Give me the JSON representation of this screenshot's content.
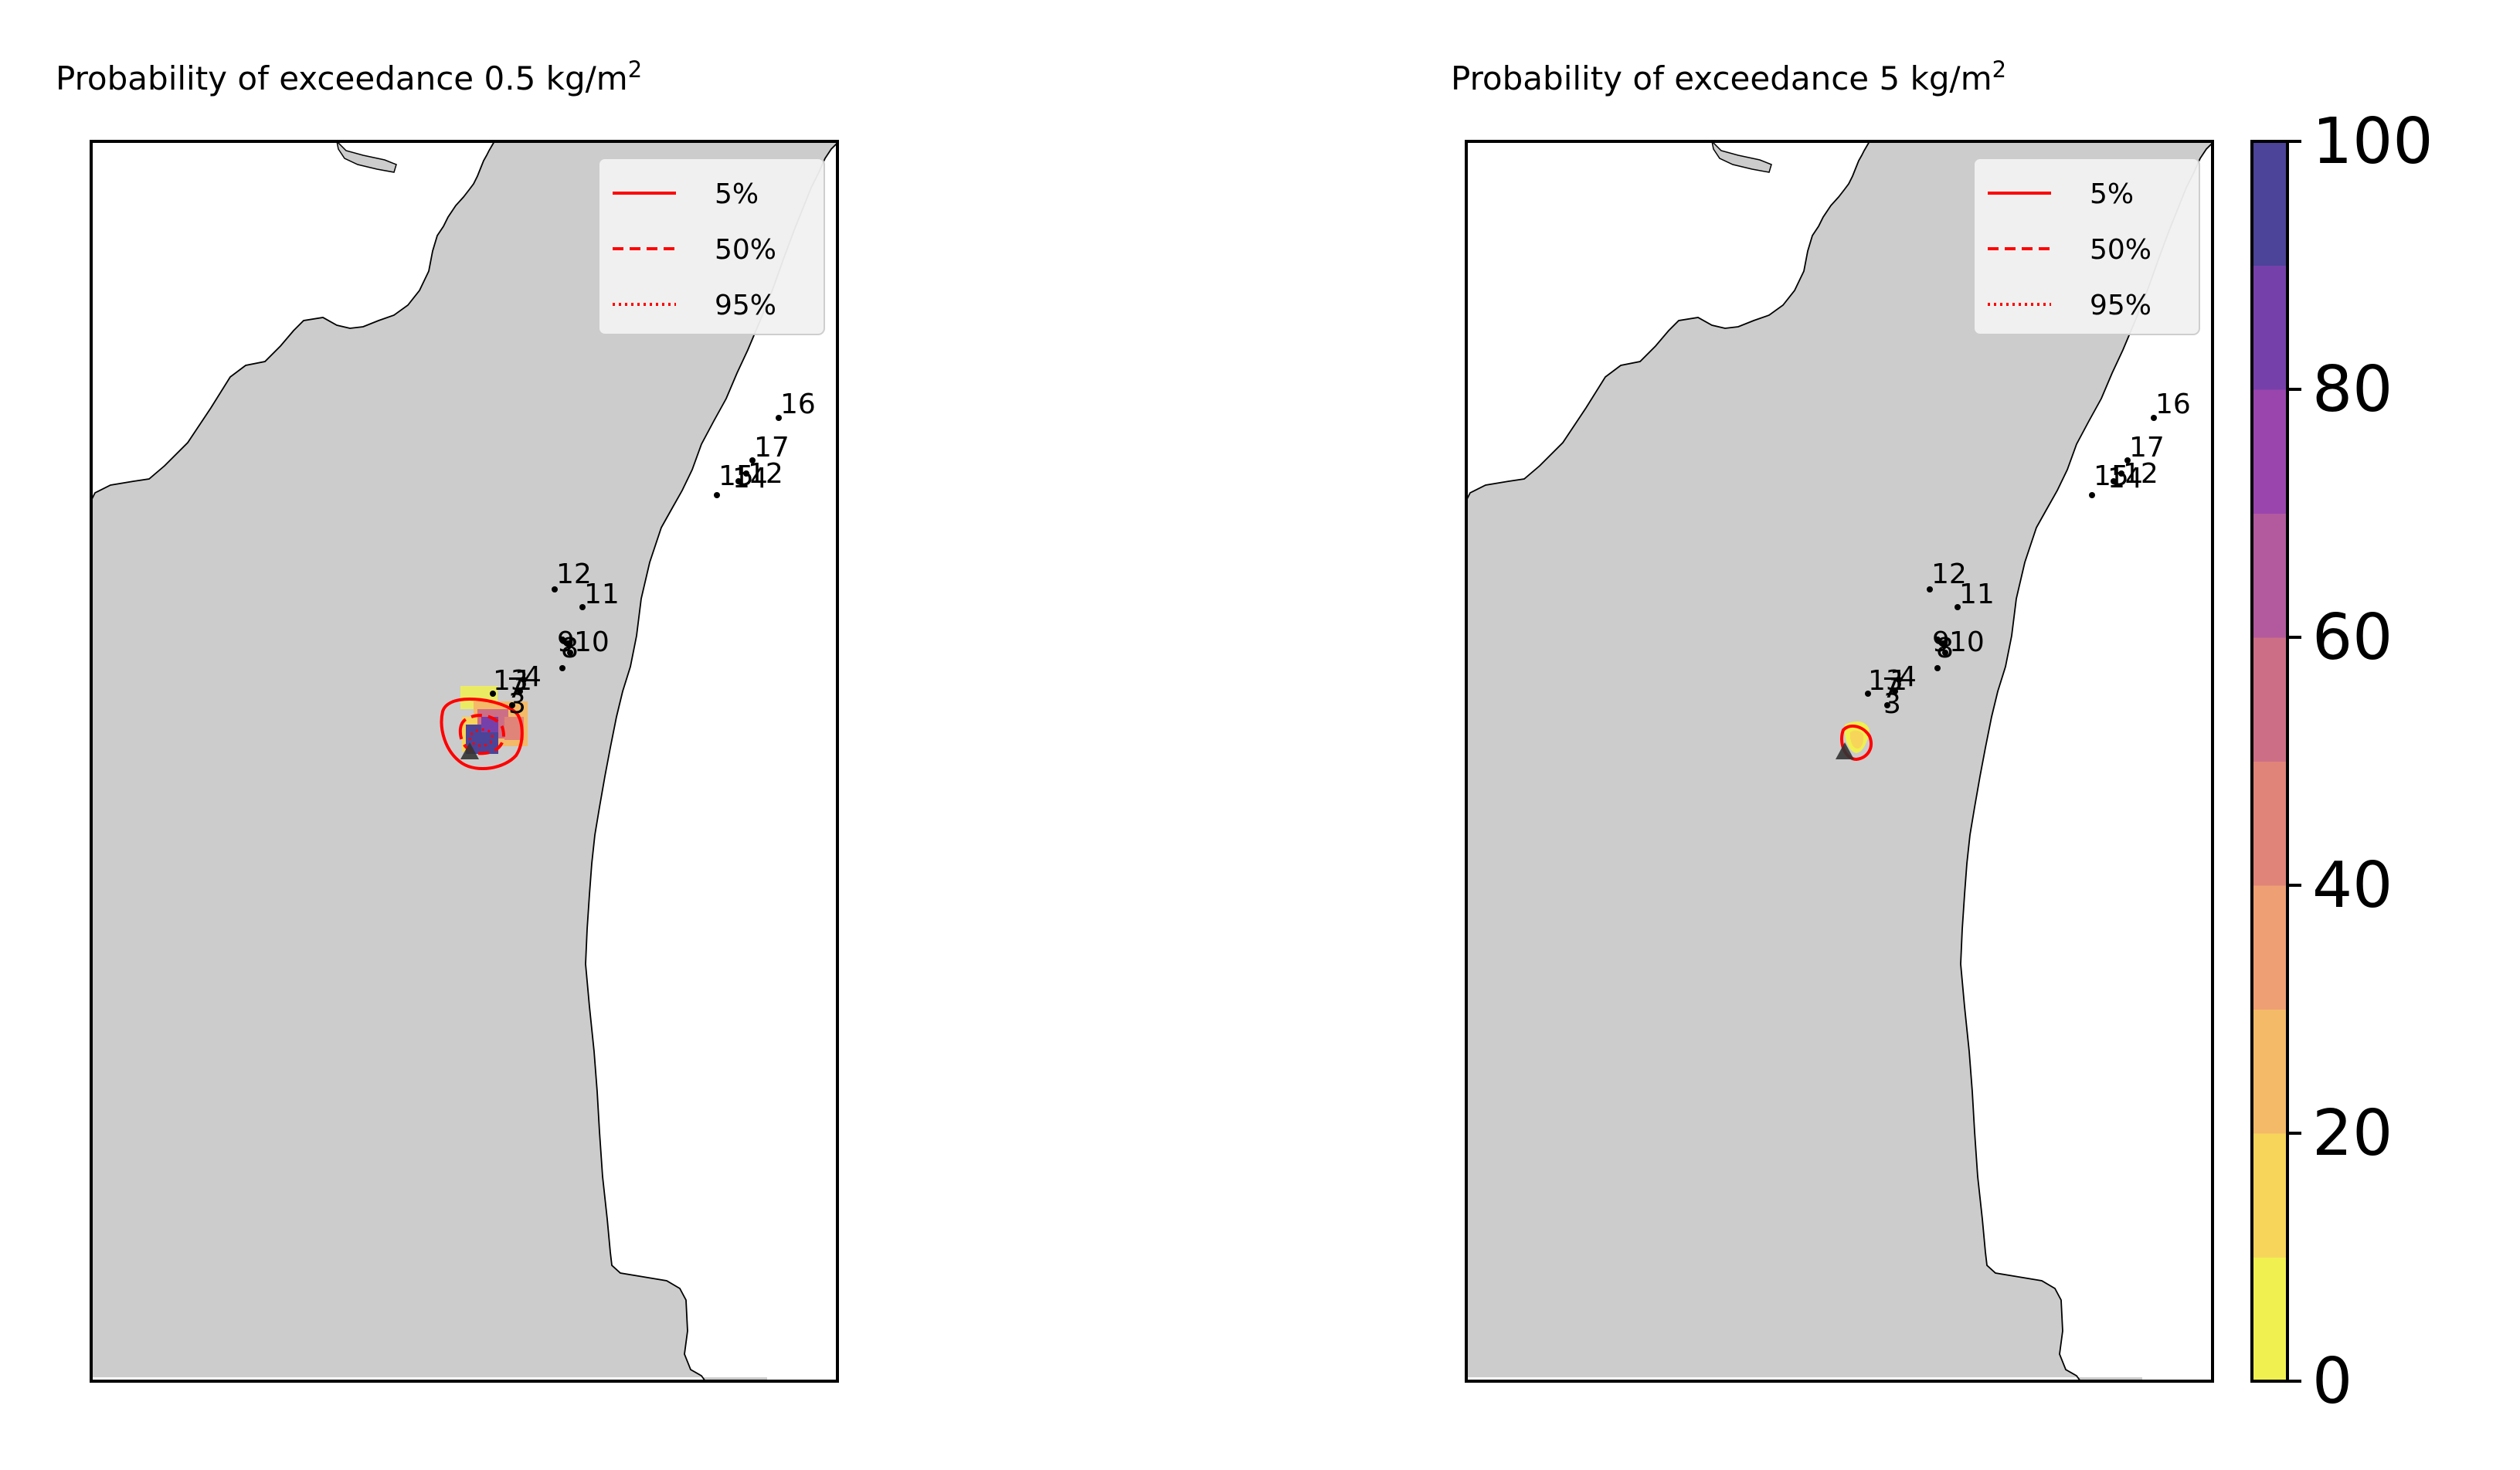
{
  "figure": {
    "panels": [
      {
        "title_prefix": "Probability of exceedance 0.5 kg/m",
        "title_exp": "2",
        "legend": [
          {
            "label": "5%",
            "style": "solid"
          },
          {
            "label": "50%",
            "style": "dashed"
          },
          {
            "label": "95%",
            "style": "dotted"
          }
        ],
        "hotspot": {
          "shape": "large",
          "max_probability": 100
        }
      },
      {
        "title_prefix": "Probability of exceedance 5 kg/m",
        "title_exp": "2",
        "legend": [
          {
            "label": "5%",
            "style": "solid"
          },
          {
            "label": "50%",
            "style": "dashed"
          },
          {
            "label": "95%",
            "style": "dotted"
          }
        ],
        "hotspot": {
          "shape": "small",
          "max_probability": 20
        }
      }
    ],
    "site_labels": [
      "16",
      "17",
      "12",
      "15",
      "14",
      "12",
      "11",
      "9",
      "8",
      "10",
      "4",
      "1",
      "7",
      "3",
      "13"
    ],
    "colorbar": {
      "ticks": [
        "0",
        "20",
        "40",
        "60",
        "80",
        "100"
      ],
      "range": [
        0,
        100
      ],
      "colors": [
        "#f0f050",
        "#f7d55a",
        "#f4ba68",
        "#ee9f74",
        "#e08479",
        "#cc6f86",
        "#b35a9e",
        "#9a45ae",
        "#7640aa",
        "#4b4498"
      ]
    },
    "colors": {
      "land": "#cccccc",
      "sea": "#ffffff",
      "contour": "#ff0000",
      "vent_marker": "#333333"
    }
  }
}
